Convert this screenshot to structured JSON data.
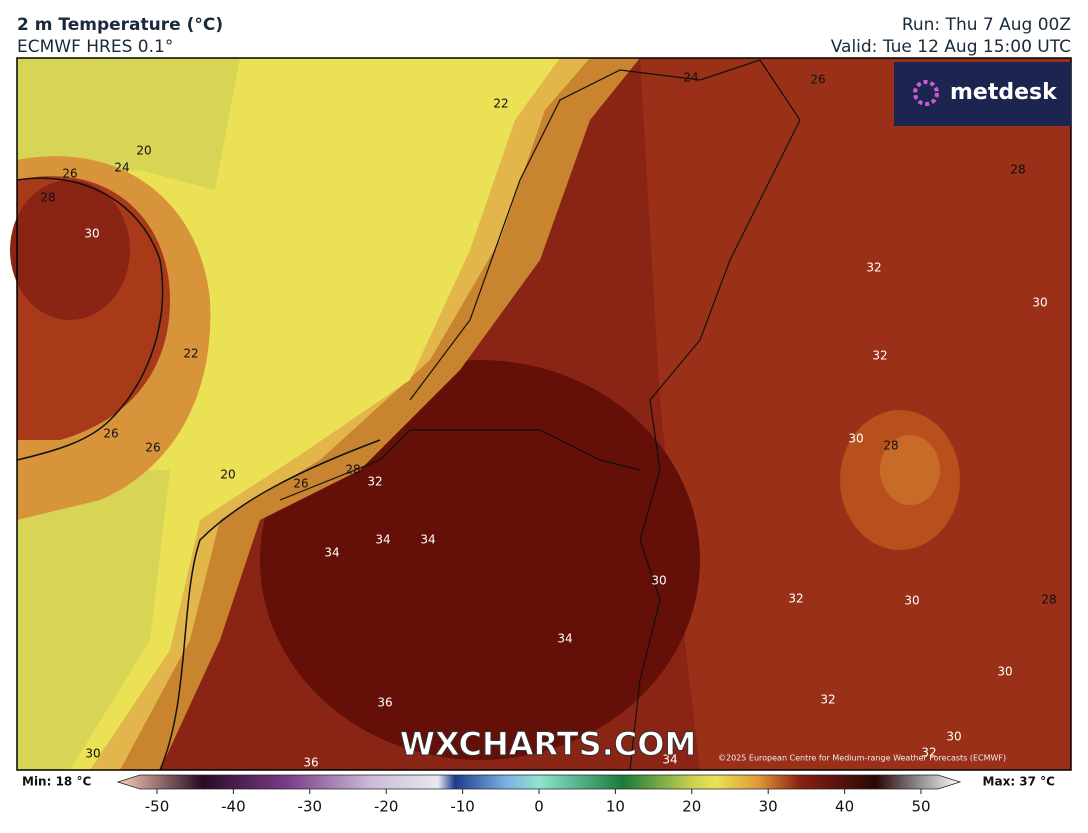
{
  "header": {
    "title": "2 m Temperature (°C)",
    "subtitle": "ECMWF HRES 0.1°",
    "run": "Run: Thu 7 Aug 00Z",
    "valid": "Valid: Tue 12 Aug 15:00 UTC"
  },
  "logo": "metdesk",
  "watermark": "WXCHARTS.COM",
  "copyright": "©2025 European Centre for Medium-range Weather Forecasts (ECMWF)",
  "contour_labels": [
    "20",
    "24",
    "26",
    "28",
    "30",
    "22",
    "26",
    "26",
    "20",
    "26",
    "28",
    "32",
    "34",
    "34",
    "34",
    "22",
    "24",
    "26",
    "28",
    "32",
    "30",
    "32",
    "30",
    "28",
    "30",
    "32",
    "30",
    "28",
    "34",
    "30",
    "32",
    "36",
    "30",
    "32",
    "30",
    "36",
    "34"
  ],
  "colorbar": {
    "min": "Min: 18 °C",
    "max": "Max: 37 °C",
    "ticks": [
      -50,
      -40,
      -30,
      -20,
      -10,
      0,
      10,
      20,
      30,
      40,
      50
    ]
  }
}
